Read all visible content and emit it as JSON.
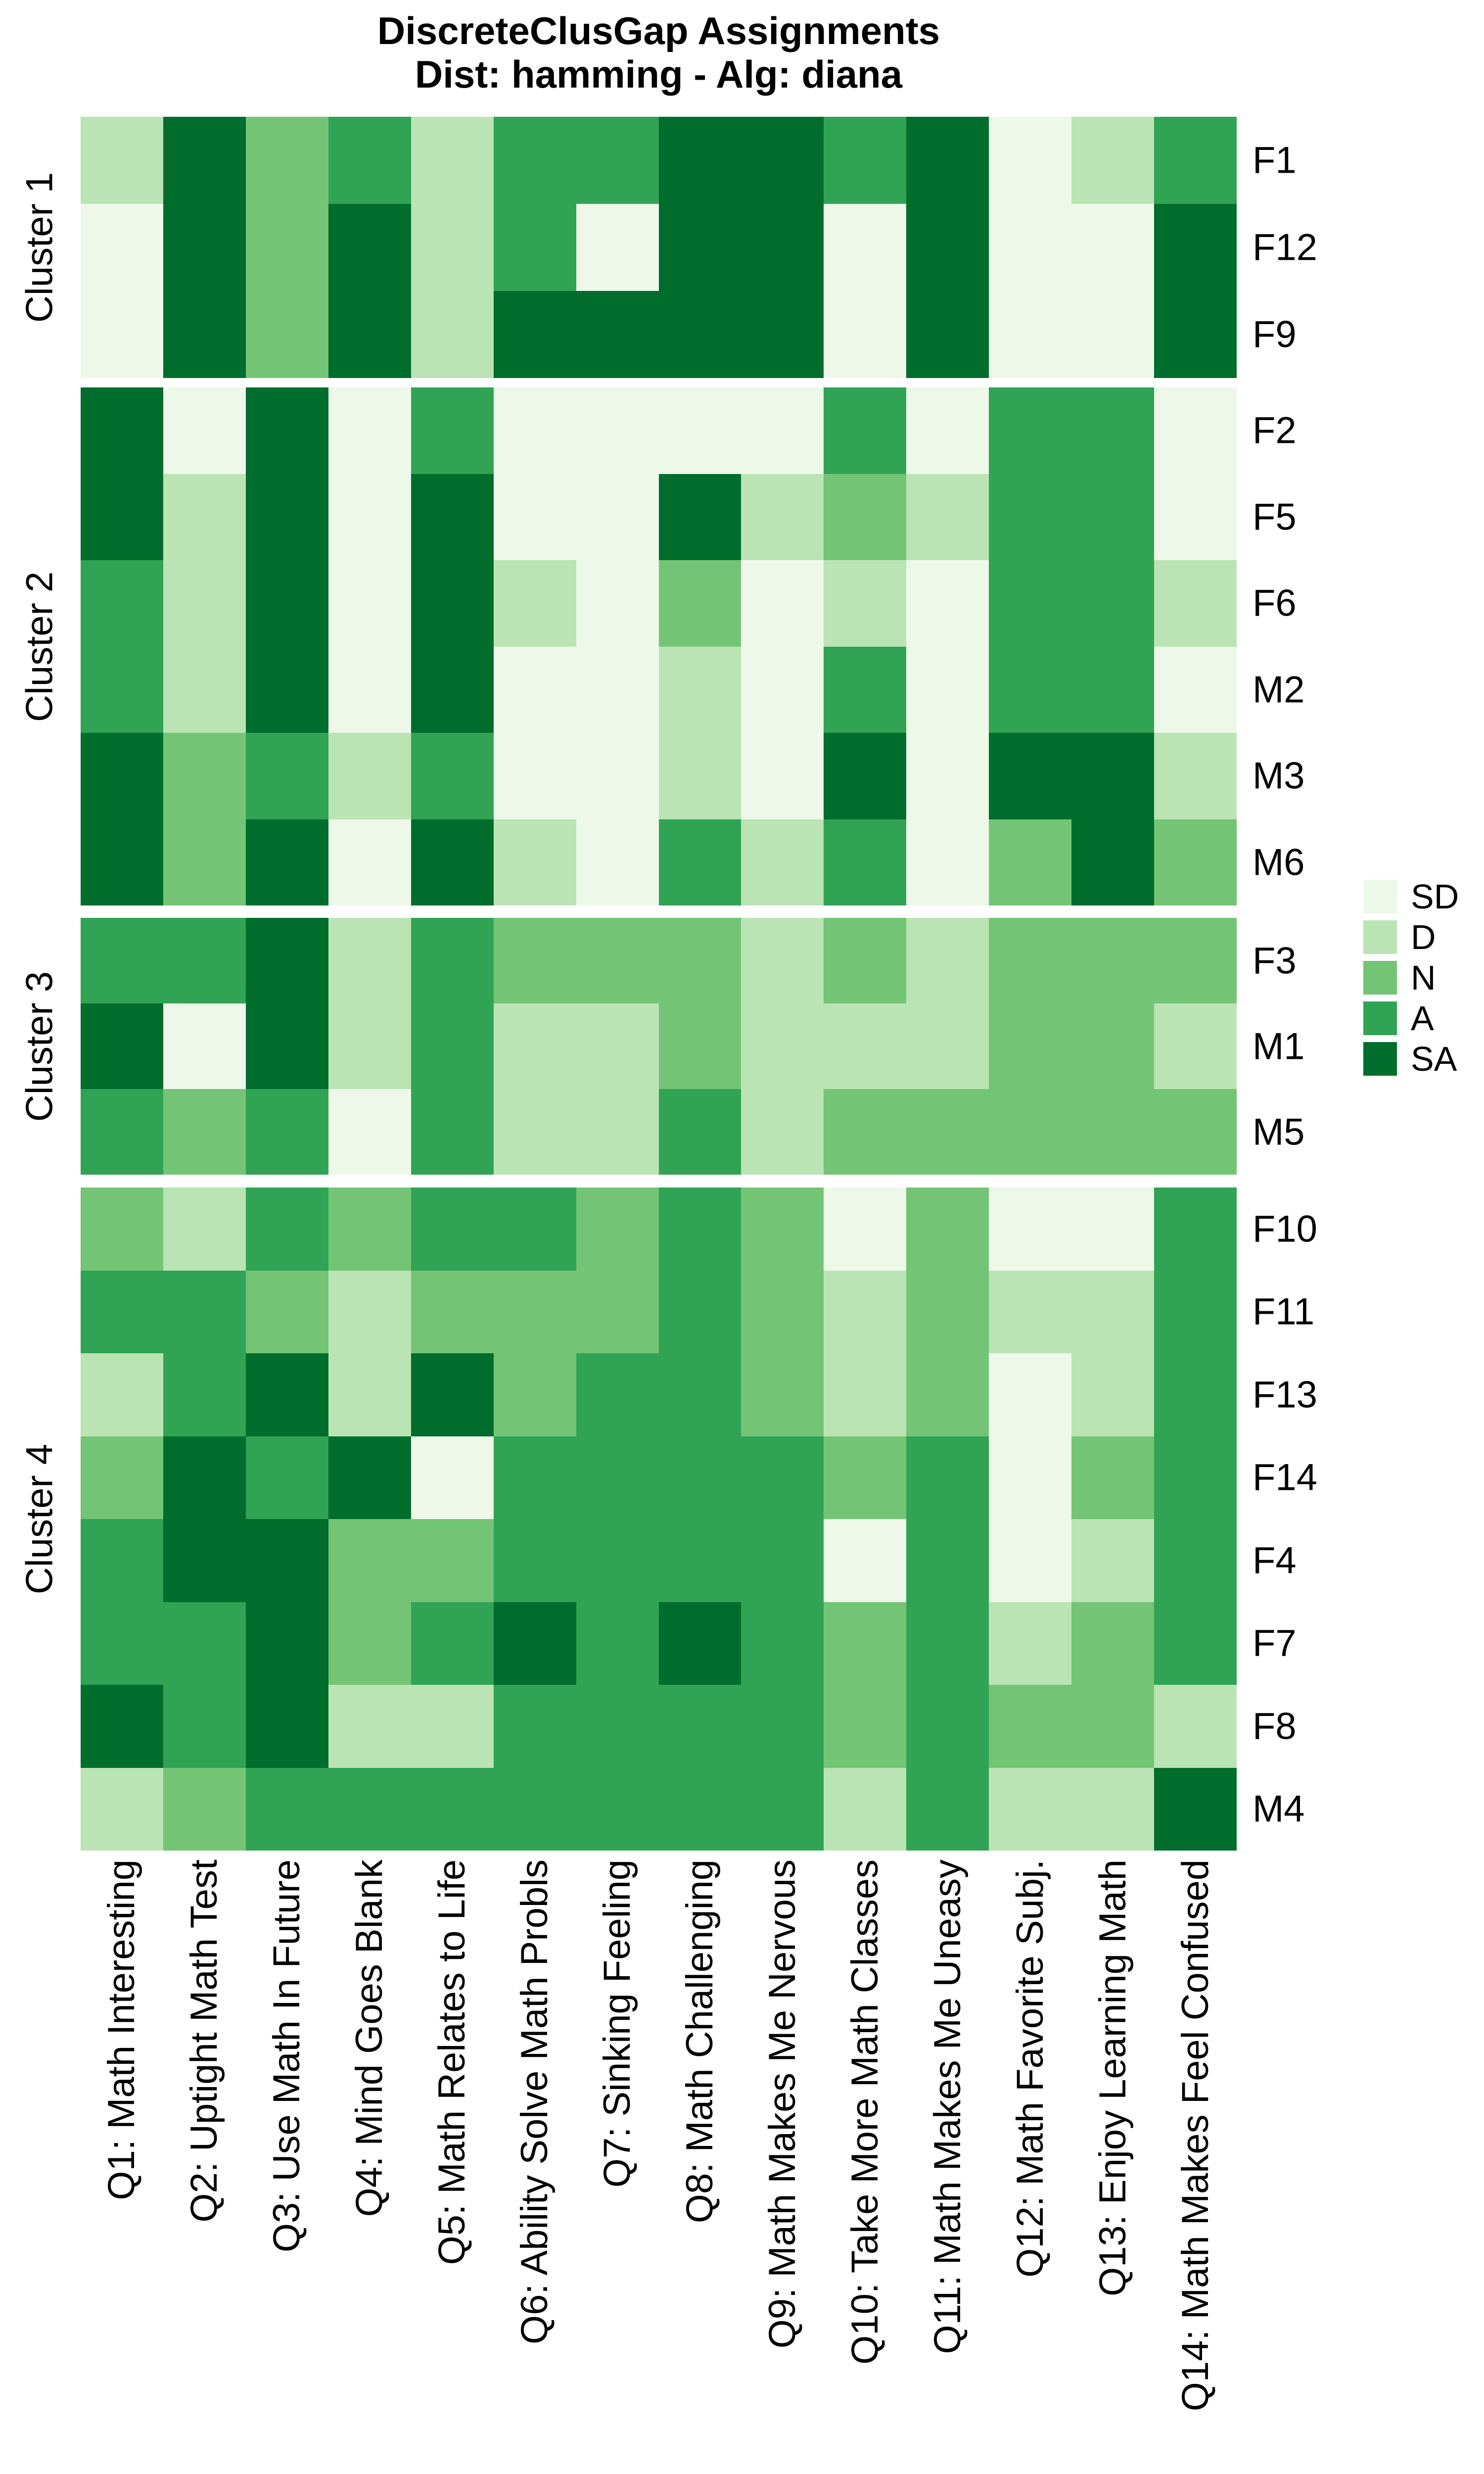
{
  "chart_data": {
    "type": "heatmap",
    "title": "DiscreteClusGap Assignments",
    "subtitle": "Dist: hamming - Alg: diana",
    "legend_position": "right",
    "row_axis_side": "right",
    "cluster_axis_side": "left",
    "levels": [
      "SD",
      "D",
      "N",
      "A",
      "SA"
    ],
    "level_colors": {
      "SD": "#EDF8E9",
      "D": "#BAE4B3",
      "N": "#74C476",
      "A": "#31A354",
      "SA": "#006D2C"
    },
    "x_labels": [
      "Q1: Math Interesting",
      "Q2: Uptight Math Test",
      "Q3: Use Math In Future",
      "Q4: Mind Goes Blank",
      "Q5: Math Relates to Life",
      "Q6: Ability Solve Math Probls",
      "Q7: Sinking Feeling",
      "Q8: Math Challenging",
      "Q9: Math Makes Me Nervous",
      "Q10: Take More Math Classes",
      "Q11: Math Makes Me Uneasy",
      "Q12: Math Favorite Subj.",
      "Q13: Enjoy Learning Math",
      "Q14: Math Makes Feel Confused"
    ],
    "clusters": [
      {
        "name": "Cluster 1",
        "rows": [
          {
            "id": "F1",
            "values": [
              "D",
              "SA",
              "N",
              "A",
              "D",
              "A",
              "A",
              "SA",
              "SA",
              "A",
              "SA",
              "SD",
              "D",
              "A"
            ]
          },
          {
            "id": "F12",
            "values": [
              "SD",
              "SA",
              "N",
              "SA",
              "D",
              "A",
              "SD",
              "SA",
              "SA",
              "SD",
              "SA",
              "SD",
              "SD",
              "SA"
            ]
          },
          {
            "id": "F9",
            "values": [
              "SD",
              "SA",
              "N",
              "SA",
              "D",
              "SA",
              "SA",
              "SA",
              "SA",
              "SD",
              "SA",
              "SD",
              "SD",
              "SA"
            ]
          }
        ]
      },
      {
        "name": "Cluster 2",
        "rows": [
          {
            "id": "F2",
            "values": [
              "SA",
              "SD",
              "SA",
              "SD",
              "A",
              "SD",
              "SD",
              "SD",
              "SD",
              "A",
              "SD",
              "A",
              "A",
              "SD"
            ]
          },
          {
            "id": "F5",
            "values": [
              "SA",
              "D",
              "SA",
              "SD",
              "SA",
              "SD",
              "SD",
              "SA",
              "D",
              "N",
              "D",
              "A",
              "A",
              "SD"
            ]
          },
          {
            "id": "F6",
            "values": [
              "A",
              "D",
              "SA",
              "SD",
              "SA",
              "D",
              "SD",
              "N",
              "SD",
              "D",
              "SD",
              "A",
              "A",
              "D"
            ]
          },
          {
            "id": "M2",
            "values": [
              "A",
              "D",
              "SA",
              "SD",
              "SA",
              "SD",
              "SD",
              "D",
              "SD",
              "A",
              "SD",
              "A",
              "A",
              "SD"
            ]
          },
          {
            "id": "M3",
            "values": [
              "SA",
              "N",
              "A",
              "D",
              "A",
              "SD",
              "SD",
              "D",
              "SD",
              "SA",
              "SD",
              "SA",
              "SA",
              "D"
            ]
          },
          {
            "id": "M6",
            "values": [
              "SA",
              "N",
              "SA",
              "SD",
              "SA",
              "D",
              "SD",
              "A",
              "D",
              "A",
              "SD",
              "N",
              "SA",
              "N"
            ]
          }
        ]
      },
      {
        "name": "Cluster 3",
        "rows": [
          {
            "id": "F3",
            "values": [
              "A",
              "A",
              "SA",
              "D",
              "A",
              "N",
              "N",
              "N",
              "D",
              "N",
              "D",
              "N",
              "N",
              "N"
            ]
          },
          {
            "id": "M1",
            "values": [
              "SA",
              "SD",
              "SA",
              "D",
              "A",
              "D",
              "D",
              "N",
              "D",
              "D",
              "D",
              "N",
              "N",
              "D"
            ]
          },
          {
            "id": "M5",
            "values": [
              "A",
              "N",
              "A",
              "SD",
              "A",
              "D",
              "D",
              "A",
              "D",
              "N",
              "N",
              "N",
              "N",
              "N"
            ]
          }
        ]
      },
      {
        "name": "Cluster 4",
        "rows": [
          {
            "id": "F10",
            "values": [
              "N",
              "D",
              "A",
              "N",
              "A",
              "A",
              "N",
              "A",
              "N",
              "SD",
              "N",
              "SD",
              "SD",
              "A"
            ]
          },
          {
            "id": "F11",
            "values": [
              "A",
              "A",
              "N",
              "D",
              "N",
              "N",
              "N",
              "A",
              "N",
              "D",
              "N",
              "D",
              "D",
              "A"
            ]
          },
          {
            "id": "F13",
            "values": [
              "D",
              "A",
              "SA",
              "D",
              "SA",
              "N",
              "A",
              "A",
              "N",
              "D",
              "N",
              "SD",
              "D",
              "A"
            ]
          },
          {
            "id": "F14",
            "values": [
              "N",
              "SA",
              "A",
              "SA",
              "SD",
              "A",
              "A",
              "A",
              "A",
              "N",
              "A",
              "SD",
              "N",
              "A"
            ]
          },
          {
            "id": "F4",
            "values": [
              "A",
              "SA",
              "SA",
              "N",
              "N",
              "A",
              "A",
              "A",
              "A",
              "SD",
              "A",
              "SD",
              "D",
              "A"
            ]
          },
          {
            "id": "F7",
            "values": [
              "A",
              "A",
              "SA",
              "N",
              "A",
              "SA",
              "A",
              "SA",
              "A",
              "N",
              "A",
              "D",
              "N",
              "A"
            ]
          },
          {
            "id": "F8",
            "values": [
              "SA",
              "A",
              "SA",
              "D",
              "D",
              "A",
              "A",
              "A",
              "A",
              "N",
              "A",
              "N",
              "N",
              "D"
            ]
          },
          {
            "id": "M4",
            "values": [
              "D",
              "N",
              "A",
              "A",
              "A",
              "A",
              "A",
              "A",
              "A",
              "D",
              "A",
              "D",
              "D",
              "SA"
            ]
          }
        ]
      }
    ],
    "legend_entries": [
      "SD",
      "D",
      "N",
      "A",
      "SA"
    ]
  }
}
